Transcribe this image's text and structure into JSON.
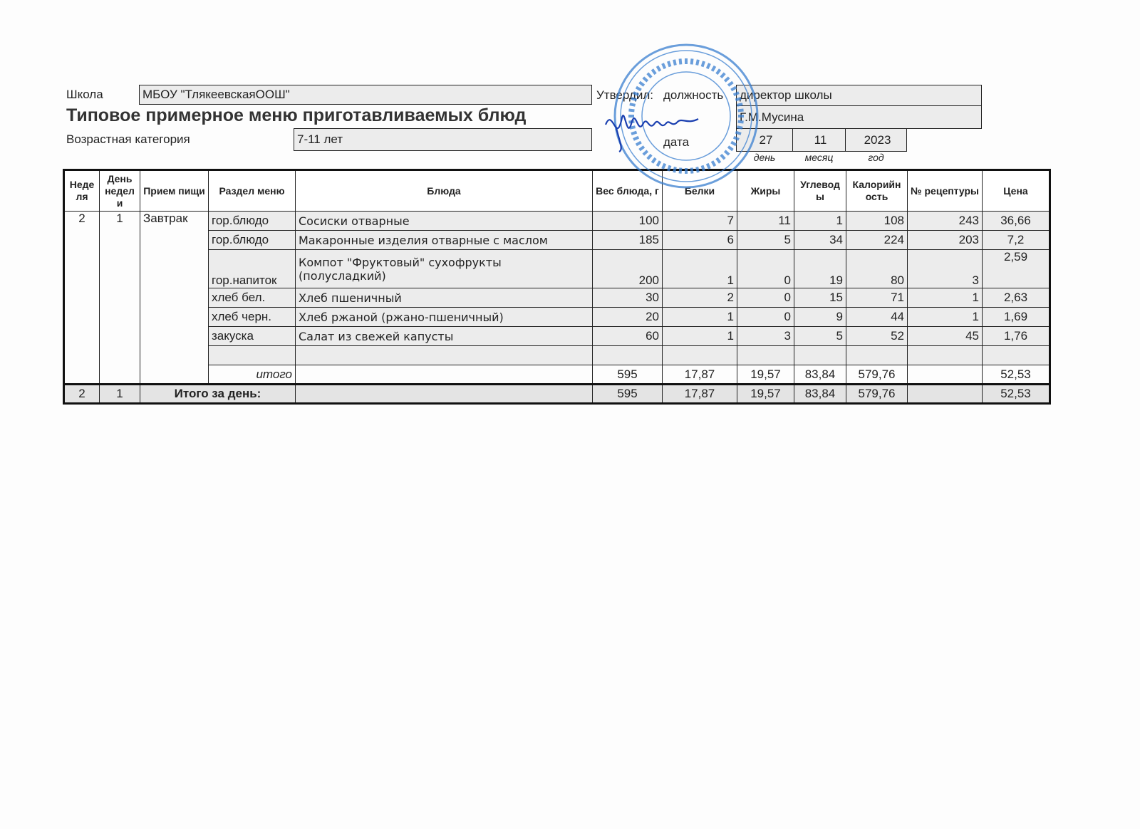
{
  "header": {
    "school_label": "Школа",
    "school": "МБОУ \"ТлякеевскаяООШ\"",
    "title": "Типовое примерное меню приготавливаемых блюд",
    "age_label": "Возрастная категория",
    "age": "7-11 лет",
    "approved_label": "Утвердил:",
    "position_label": "должность",
    "position": "директор школы",
    "name": "Г.М.Мусина",
    "date_label": "дата",
    "day": "27",
    "month": "11",
    "year": "2023",
    "day_caption": "день",
    "month_caption": "месяц",
    "year_caption": "год"
  },
  "stamp": {
    "text_center": "МБОУ «Тлякеевская ООШ»",
    "ogrn": "ОГРН 1051635",
    "inn": "ИНН 1604005765",
    "color": "#3a7fd0"
  },
  "signature": {
    "text": "Мусина",
    "color": "#1a3fb0"
  },
  "table": {
    "columns": [
      "Неде ля",
      "День недел и",
      "Прием пищи",
      "Раздел меню",
      "Блюда",
      "Вес блюда, г",
      "Белки",
      "Жиры",
      "Углевод ы",
      "Калорийн ость",
      "№ рецептуры",
      "Цена"
    ],
    "week": "2",
    "day": "1",
    "meal": "Завтрак",
    "rows": [
      {
        "section": "гор.блюдо",
        "dish": "Сосиски отварные",
        "weight": "100",
        "protein": "7",
        "fat": "11",
        "carbs": "1",
        "kcal": "108",
        "recipe": "243",
        "price": "36,66"
      },
      {
        "section": "гор.блюдо",
        "dish": "Макаронные изделия отварные с маслом",
        "weight": "185",
        "protein": "6",
        "fat": "5",
        "carbs": "34",
        "kcal": "224",
        "recipe": "203",
        "price": "7,2"
      },
      {
        "section": "гор.напиток",
        "dish": "Компот \"Фруктовый\" сухофрукты (полусладкий)",
        "weight": "200",
        "protein": "1",
        "fat": "0",
        "carbs": "19",
        "kcal": "80",
        "recipe": "3",
        "price": "2,59"
      },
      {
        "section": "хлеб бел.",
        "dish": "Хлеб пшеничный",
        "weight": "30",
        "protein": "2",
        "fat": "0",
        "carbs": "15",
        "kcal": "71",
        "recipe": "1",
        "price": "2,63"
      },
      {
        "section": "хлеб черн.",
        "dish": "Хлеб ржаной (ржано-пшеничный)",
        "weight": "20",
        "protein": "1",
        "fat": "0",
        "carbs": "9",
        "kcal": "44",
        "recipe": "1",
        "price": "1,69"
      },
      {
        "section": "закуска",
        "dish": "Салат из свежей капусты",
        "weight": "60",
        "protein": "1",
        "fat": "3",
        "carbs": "5",
        "kcal": "52",
        "recipe": "45",
        "price": "1,76"
      }
    ],
    "subtotal": {
      "label": "итого",
      "weight": "595",
      "protein": "17,87",
      "fat": "19,57",
      "carbs": "83,84",
      "kcal": "579,76",
      "price": "52,53"
    },
    "total": {
      "week": "2",
      "day": "1",
      "label": "Итого за день:",
      "weight": "595",
      "protein": "17,87",
      "fat": "19,57",
      "carbs": "83,84",
      "kcal": "579,76",
      "price": "52,53"
    }
  }
}
